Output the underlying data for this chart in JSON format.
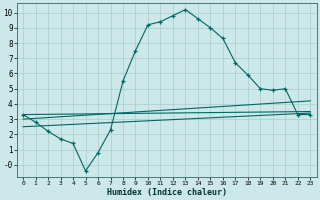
{
  "title": "",
  "xlabel": "Humidex (Indice chaleur)",
  "bg_color": "#cde8e8",
  "grid_color": "#aacccc",
  "line_color": "#006666",
  "xlim": [
    -0.5,
    23.5
  ],
  "ylim": [
    -0.8,
    10.6
  ],
  "xticks": [
    0,
    1,
    2,
    3,
    4,
    5,
    6,
    7,
    8,
    9,
    10,
    11,
    12,
    13,
    14,
    15,
    16,
    17,
    18,
    19,
    20,
    21,
    22,
    23
  ],
  "yticks": [
    0,
    1,
    2,
    3,
    4,
    5,
    6,
    7,
    8,
    9,
    10
  ],
  "line1_x": [
    0,
    1,
    2,
    3,
    4,
    5,
    6,
    7,
    8,
    9,
    10,
    11,
    12,
    13,
    14,
    15,
    16,
    17,
    18,
    19,
    20,
    21,
    22,
    23
  ],
  "line1_y": [
    3.3,
    2.8,
    2.2,
    1.7,
    1.4,
    -0.4,
    0.8,
    2.3,
    5.5,
    7.5,
    9.2,
    9.4,
    9.8,
    10.2,
    9.6,
    9.0,
    8.3,
    6.7,
    5.9,
    5.0,
    4.9,
    5.0,
    3.3,
    3.3
  ],
  "line2_x": [
    0,
    23
  ],
  "line2_y": [
    3.3,
    3.5
  ],
  "line3_x": [
    0,
    23
  ],
  "line3_y": [
    3.0,
    4.2
  ],
  "line4_x": [
    0,
    23
  ],
  "line4_y": [
    2.5,
    3.4
  ]
}
